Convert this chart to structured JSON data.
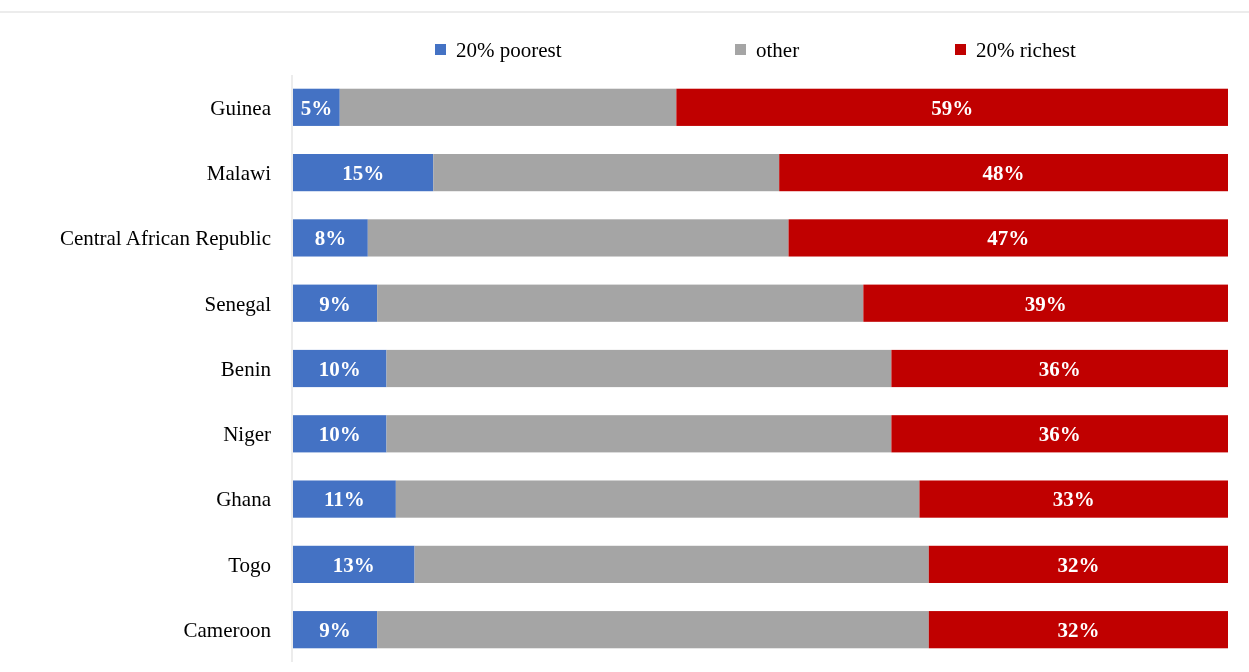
{
  "chart_data": {
    "type": "bar",
    "orientation": "horizontal",
    "stacked": true,
    "legend": "top",
    "categories": [
      "Guinea",
      "Malawi",
      "Central African Republic",
      "Senegal",
      "Benin",
      "Niger",
      "Ghana",
      "Togo",
      "Cameroon"
    ],
    "xlim": [
      0,
      100
    ],
    "tick_labels": "y",
    "series": [
      {
        "name": "20% poorest",
        "color": "#4472c4",
        "values": [
          5,
          15,
          8,
          9,
          10,
          10,
          11,
          13,
          9
        ],
        "value_labels": [
          "5%",
          "15%",
          "8%",
          "9%",
          "10%",
          "10%",
          "11%",
          "13%",
          "9%"
        ]
      },
      {
        "name": "other",
        "color": "#a5a5a5",
        "values": [
          36,
          37,
          45,
          52,
          54,
          54,
          56,
          55,
          59
        ]
      },
      {
        "name": "20% richest",
        "color": "#c00000",
        "values": [
          59,
          48,
          47,
          39,
          36,
          36,
          33,
          32,
          32
        ],
        "value_labels": [
          "59%",
          "48%",
          "47%",
          "39%",
          "36%",
          "36%",
          "33%",
          "32%",
          "32%"
        ]
      }
    ]
  }
}
